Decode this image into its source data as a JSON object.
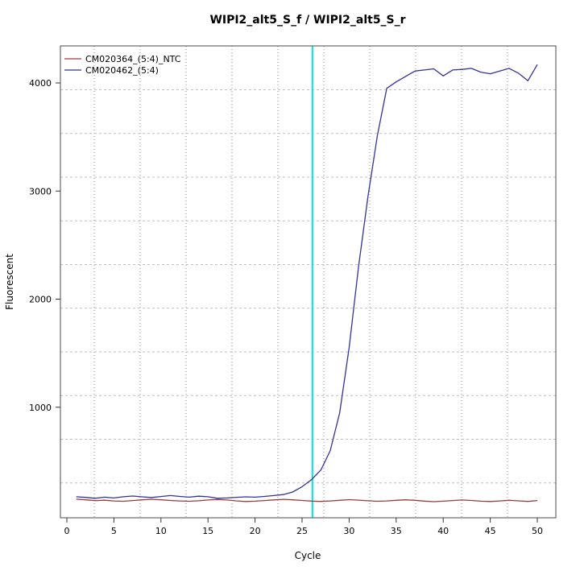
{
  "chart_data": {
    "type": "line",
    "title": "WIPI2_alt5_S_f / WIPI2_alt5_S_r",
    "xlabel": "Cycle",
    "ylabel": "Fluorescent",
    "x_ticks": [
      0,
      5,
      10,
      15,
      20,
      25,
      30,
      35,
      40,
      45,
      50
    ],
    "y_ticks": [
      1000,
      2000,
      3000,
      4000
    ],
    "xlim": [
      -0.7,
      52
    ],
    "ylim": [
      -30,
      4345
    ],
    "grid": "dotted",
    "legend_position": "top-left",
    "threshold_line": {
      "cycle": 26.1,
      "color": "#00E6E6"
    },
    "x": [
      1,
      2,
      3,
      4,
      5,
      6,
      7,
      8,
      9,
      10,
      11,
      12,
      13,
      14,
      15,
      16,
      17,
      18,
      19,
      20,
      21,
      22,
      23,
      24,
      25,
      26,
      27,
      28,
      29,
      30,
      31,
      32,
      33,
      34,
      35,
      36,
      37,
      38,
      39,
      40,
      41,
      42,
      43,
      44,
      45,
      46,
      47,
      48,
      49,
      50
    ],
    "series": [
      {
        "name": "CM020364_(5:4)_NTC",
        "color": "#9E3B3B",
        "values": [
          150,
          144,
          136,
          140,
          133,
          130,
          137,
          144,
          149,
          144,
          138,
          133,
          130,
          135,
          142,
          147,
          142,
          134,
          128,
          131,
          137,
          143,
          148,
          144,
          138,
          132,
          129,
          133,
          139,
          145,
          141,
          135,
          130,
          133,
          139,
          144,
          139,
          132,
          127,
          131,
          137,
          142,
          138,
          131,
          128,
          133,
          139,
          134,
          129,
          137
        ]
      },
      {
        "name": "CM020462_(5:4)",
        "color": "#33339B",
        "values": [
          172,
          166,
          158,
          168,
          161,
          172,
          179,
          171,
          165,
          174,
          183,
          175,
          168,
          177,
          172,
          158,
          161,
          167,
          171,
          168,
          175,
          183,
          192,
          216,
          265,
          330,
          420,
          600,
          950,
          1550,
          2300,
          2950,
          3510,
          3950,
          4010,
          4060,
          4110,
          4120,
          4130,
          4065,
          4120,
          4125,
          4135,
          4100,
          4085,
          4110,
          4135,
          4090,
          4020,
          4170
        ]
      }
    ]
  }
}
